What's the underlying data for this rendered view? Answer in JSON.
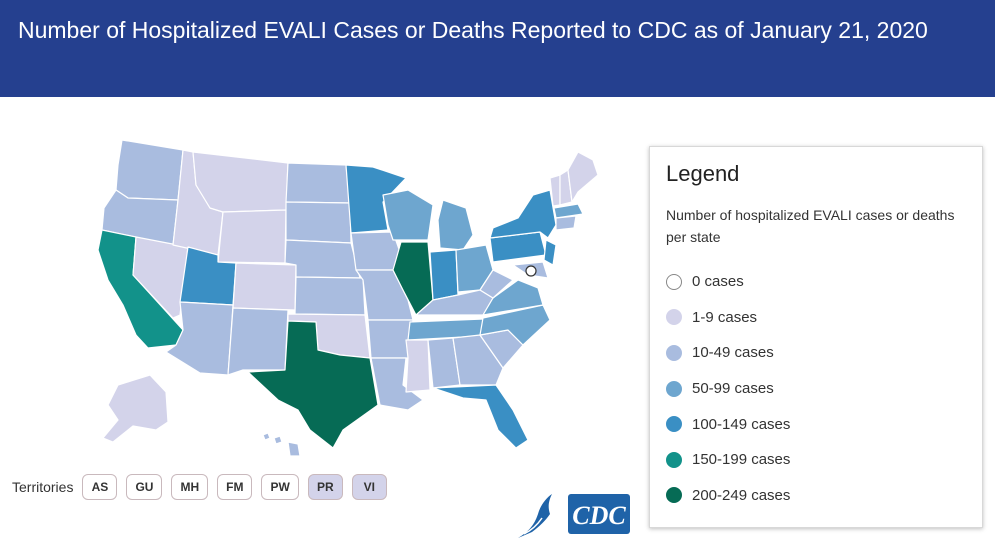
{
  "header": {
    "title": "Number of Hospitalized EVALI Cases or Deaths Reported to CDC as of January 21, 2020"
  },
  "legend": {
    "title": "Legend",
    "subtitle": "Number of hospitalized EVALI cases or deaths per state",
    "items": [
      {
        "label": "0 cases",
        "color": "#ffffff"
      },
      {
        "label": "1-9 cases",
        "color": "#d3d3ea"
      },
      {
        "label": "10-49 cases",
        "color": "#a9bcdf"
      },
      {
        "label": "50-99 cases",
        "color": "#6ea6cf"
      },
      {
        "label": "100-149 cases",
        "color": "#3a8fc4"
      },
      {
        "label": "150-199 cases",
        "color": "#12928a"
      },
      {
        "label": "200-249 cases",
        "color": "#066b55"
      }
    ]
  },
  "territories": {
    "label": "Territories",
    "items": [
      {
        "label": "AS",
        "color": "#ffffff"
      },
      {
        "label": "GU",
        "color": "#ffffff"
      },
      {
        "label": "MH",
        "color": "#ffffff"
      },
      {
        "label": "FM",
        "color": "#ffffff"
      },
      {
        "label": "PW",
        "color": "#ffffff"
      },
      {
        "label": "PR",
        "color": "#d3d3ea"
      },
      {
        "label": "VI",
        "color": "#d3d3ea"
      }
    ]
  },
  "logo": {
    "text": "CDC",
    "color": "#1f63a8"
  }
}
